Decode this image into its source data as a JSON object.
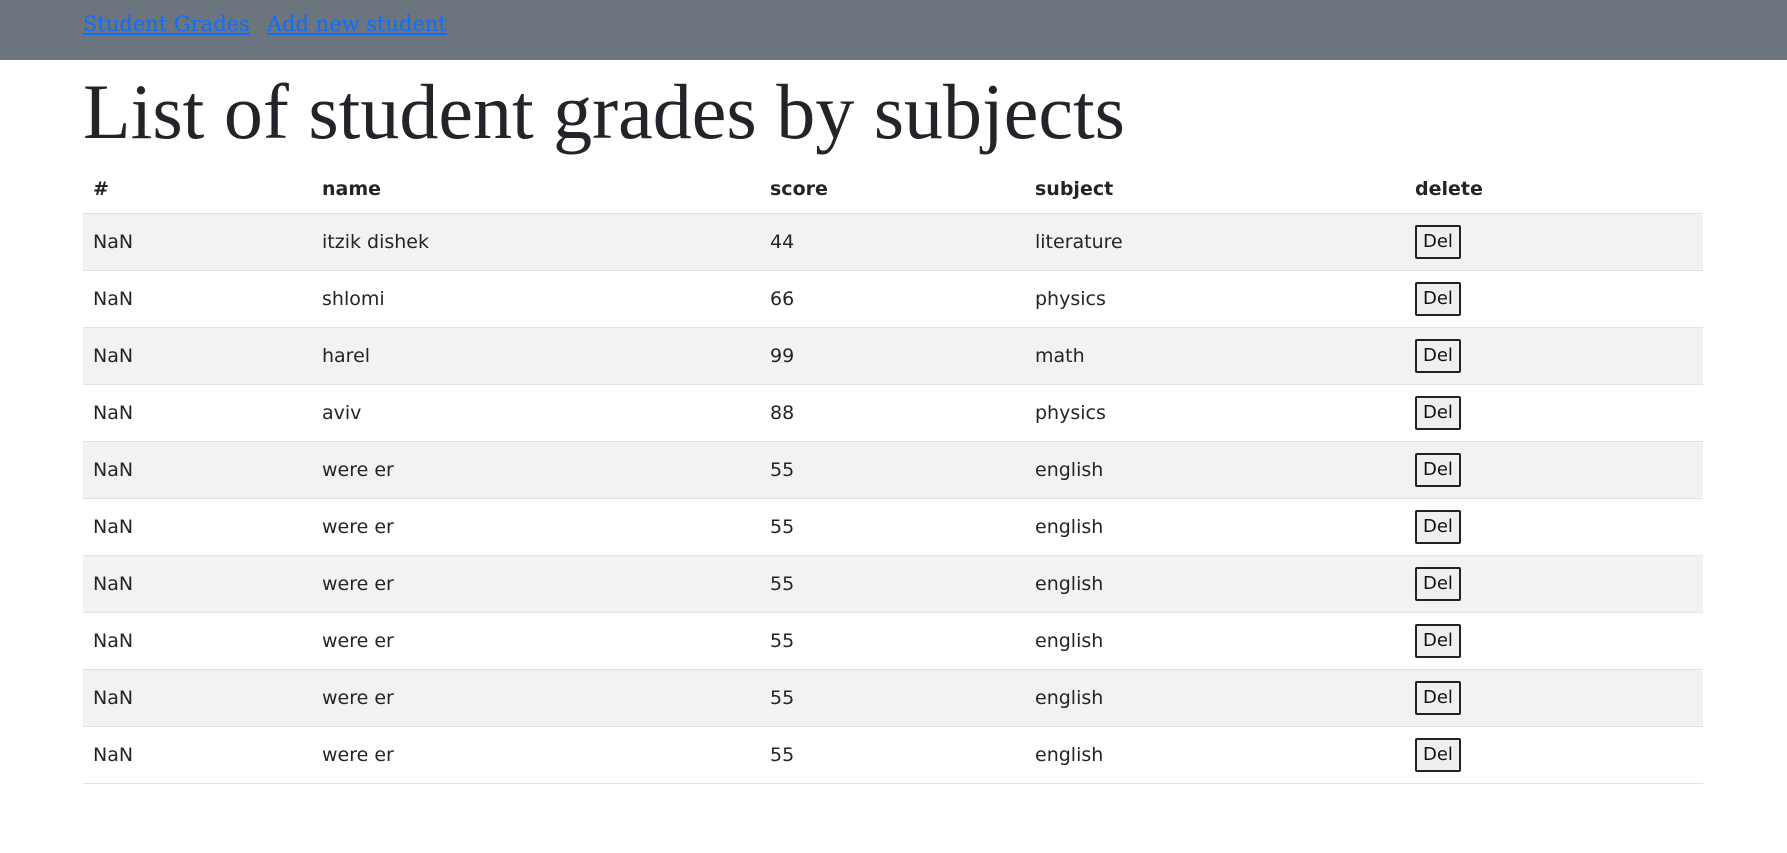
{
  "nav": {
    "links": [
      "Student Grades",
      "Add new student"
    ]
  },
  "page": {
    "title": "List of student grades by subjects"
  },
  "table": {
    "headers": [
      "#",
      "name",
      "score",
      "subject",
      "delete"
    ],
    "rows": [
      {
        "num": "NaN",
        "name": "itzik dishek",
        "score": "44",
        "subject": "literature",
        "action": "Del"
      },
      {
        "num": "NaN",
        "name": "shlomi",
        "score": "66",
        "subject": "physics",
        "action": "Del"
      },
      {
        "num": "NaN",
        "name": "harel",
        "score": "99",
        "subject": "math",
        "action": "Del"
      },
      {
        "num": "NaN",
        "name": "aviv",
        "score": "88",
        "subject": "physics",
        "action": "Del"
      },
      {
        "num": "NaN",
        "name": "were er",
        "score": "55",
        "subject": "english",
        "action": "Del"
      },
      {
        "num": "NaN",
        "name": "were er",
        "score": "55",
        "subject": "english",
        "action": "Del"
      },
      {
        "num": "NaN",
        "name": "were er",
        "score": "55",
        "subject": "english",
        "action": "Del"
      },
      {
        "num": "NaN",
        "name": "were er",
        "score": "55",
        "subject": "english",
        "action": "Del"
      },
      {
        "num": "NaN",
        "name": "were er",
        "score": "55",
        "subject": "english",
        "action": "Del"
      },
      {
        "num": "NaN",
        "name": "were er",
        "score": "55",
        "subject": "english",
        "action": "Del"
      }
    ]
  },
  "colors": {
    "navbar": "#6c757d",
    "link": "#0d6efd",
    "stripe": "#f2f2f2"
  }
}
